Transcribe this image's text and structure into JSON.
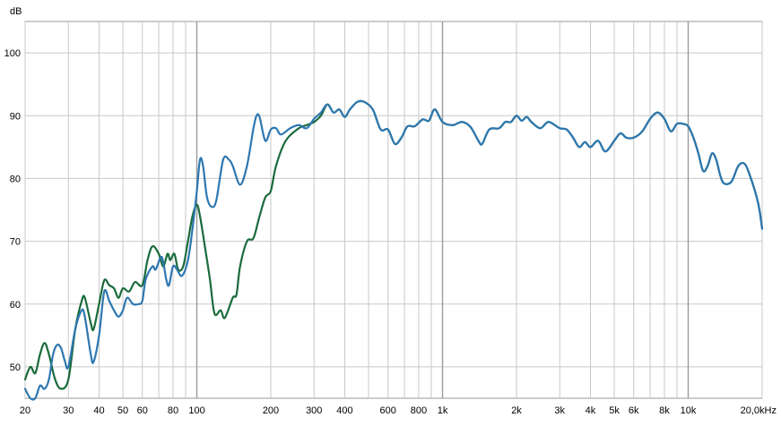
{
  "chart_data": {
    "type": "line",
    "title": "",
    "xlabel": "",
    "ylabel": "dB",
    "xscale": "log",
    "xlim": [
      20,
      20000
    ],
    "ylim": [
      45,
      105
    ],
    "grid": true,
    "legend": "none",
    "x_ticks": [
      {
        "v": 20,
        "label": "20"
      },
      {
        "v": 30,
        "label": "30"
      },
      {
        "v": 40,
        "label": "40"
      },
      {
        "v": 50,
        "label": "50"
      },
      {
        "v": 60,
        "label": "60"
      },
      {
        "v": 80,
        "label": "80"
      },
      {
        "v": 100,
        "label": "100"
      },
      {
        "v": 200,
        "label": "200"
      },
      {
        "v": 300,
        "label": "300"
      },
      {
        "v": 400,
        "label": "400"
      },
      {
        "v": 600,
        "label": "600"
      },
      {
        "v": 800,
        "label": "800"
      },
      {
        "v": 1000,
        "label": "1k"
      },
      {
        "v": 2000,
        "label": "2k"
      },
      {
        "v": 3000,
        "label": "3k"
      },
      {
        "v": 4000,
        "label": "4k"
      },
      {
        "v": 5000,
        "label": "5k"
      },
      {
        "v": 6000,
        "label": "6k"
      },
      {
        "v": 8000,
        "label": "8k"
      },
      {
        "v": 10000,
        "label": "10k"
      },
      {
        "v": 20000,
        "label": "20,0kHz"
      }
    ],
    "y_ticks": [
      {
        "v": 50,
        "label": "50"
      },
      {
        "v": 60,
        "label": "60"
      },
      {
        "v": 70,
        "label": "70"
      },
      {
        "v": 80,
        "label": "80"
      },
      {
        "v": 90,
        "label": "90"
      },
      {
        "v": 100,
        "label": "100"
      }
    ],
    "series": [
      {
        "color": "#1a6b3c",
        "points": [
          [
            20,
            48
          ],
          [
            21,
            50
          ],
          [
            22,
            49
          ],
          [
            23,
            52
          ],
          [
            24,
            53.8
          ],
          [
            25,
            52
          ],
          [
            26.5,
            48
          ],
          [
            28,
            46.5
          ],
          [
            30,
            48
          ],
          [
            32,
            56
          ],
          [
            34,
            60.5
          ],
          [
            35,
            61
          ],
          [
            37,
            57
          ],
          [
            38,
            56
          ],
          [
            40,
            60
          ],
          [
            42,
            63.8
          ],
          [
            44,
            63
          ],
          [
            46,
            62.5
          ],
          [
            48,
            61
          ],
          [
            50,
            62.5
          ],
          [
            53,
            62
          ],
          [
            56,
            63.5
          ],
          [
            60,
            63
          ],
          [
            63,
            67
          ],
          [
            66,
            69.2
          ],
          [
            70,
            68
          ],
          [
            73,
            66
          ],
          [
            76,
            68
          ],
          [
            78,
            67
          ],
          [
            81,
            68
          ],
          [
            84,
            65.5
          ],
          [
            88,
            66
          ],
          [
            92,
            70
          ],
          [
            96,
            74
          ],
          [
            100,
            75.8
          ],
          [
            103,
            74
          ],
          [
            108,
            69
          ],
          [
            113,
            64
          ],
          [
            118,
            58.5
          ],
          [
            125,
            59
          ],
          [
            130,
            57.8
          ],
          [
            140,
            61
          ],
          [
            145,
            61.5
          ],
          [
            150,
            66
          ],
          [
            160,
            70
          ],
          [
            170,
            70.5
          ],
          [
            180,
            74
          ],
          [
            190,
            77
          ],
          [
            200,
            78
          ],
          [
            210,
            82
          ],
          [
            230,
            86
          ],
          [
            260,
            88
          ],
          [
            280,
            88.5
          ],
          [
            300,
            89
          ],
          [
            320,
            90
          ],
          [
            340,
            91.8
          ],
          [
            360,
            90.5
          ],
          [
            380,
            91
          ],
          [
            400,
            89.8
          ],
          [
            420,
            91
          ],
          [
            450,
            92.2
          ],
          [
            480,
            92.2
          ],
          [
            520,
            91
          ],
          [
            560,
            87.8
          ],
          [
            600,
            87.8
          ],
          [
            640,
            85.5
          ],
          [
            680,
            86.5
          ],
          [
            720,
            88.3
          ],
          [
            770,
            88.3
          ],
          [
            830,
            89.4
          ],
          [
            880,
            89.2
          ],
          [
            930,
            91
          ],
          [
            1000,
            89
          ],
          [
            1100,
            88.5
          ],
          [
            1200,
            89
          ],
          [
            1300,
            88.2
          ],
          [
            1400,
            86
          ],
          [
            1450,
            85.5
          ],
          [
            1550,
            87.8
          ],
          [
            1700,
            88
          ],
          [
            1800,
            89
          ],
          [
            1900,
            89
          ],
          [
            2000,
            90
          ],
          [
            2100,
            89.2
          ],
          [
            2200,
            89.8
          ],
          [
            2300,
            89
          ],
          [
            2500,
            88
          ],
          [
            2700,
            89
          ],
          [
            3000,
            88
          ],
          [
            3200,
            87.8
          ],
          [
            3400,
            86.5
          ],
          [
            3600,
            85
          ],
          [
            3800,
            85.8
          ],
          [
            4000,
            85
          ],
          [
            4300,
            86
          ],
          [
            4600,
            84.3
          ],
          [
            5000,
            86
          ],
          [
            5300,
            87.2
          ],
          [
            5600,
            86.5
          ],
          [
            6000,
            86.5
          ],
          [
            6500,
            87.5
          ],
          [
            7000,
            89.5
          ],
          [
            7500,
            90.5
          ],
          [
            8000,
            89.5
          ],
          [
            8500,
            87.5
          ],
          [
            9000,
            88.7
          ],
          [
            9500,
            88.7
          ],
          [
            10000,
            88.3
          ],
          [
            10500,
            86.5
          ],
          [
            11000,
            84
          ],
          [
            11500,
            81.2
          ],
          [
            12000,
            82
          ],
          [
            12500,
            84
          ],
          [
            13000,
            83
          ],
          [
            13500,
            80.5
          ],
          [
            14000,
            79.2
          ],
          [
            15000,
            79.5
          ],
          [
            16000,
            82
          ],
          [
            17000,
            82.3
          ],
          [
            18000,
            80
          ],
          [
            19000,
            77
          ],
          [
            19500,
            75
          ],
          [
            20000,
            72
          ]
        ]
      },
      {
        "color": "#2e77b0",
        "points": [
          [
            20,
            46.5
          ],
          [
            21,
            44
          ],
          [
            22,
            44
          ],
          [
            23,
            47
          ],
          [
            24,
            46.5
          ],
          [
            25,
            48
          ],
          [
            26,
            52
          ],
          [
            27,
            53.5
          ],
          [
            28,
            53
          ],
          [
            29,
            51
          ],
          [
            30,
            50
          ],
          [
            32,
            56
          ],
          [
            34,
            59
          ],
          [
            35,
            58
          ],
          [
            37,
            52
          ],
          [
            38,
            50.8
          ],
          [
            40,
            55
          ],
          [
            42,
            62
          ],
          [
            44,
            60.5
          ],
          [
            46,
            59
          ],
          [
            48,
            58
          ],
          [
            50,
            59
          ],
          [
            52,
            61
          ],
          [
            55,
            60
          ],
          [
            58,
            60
          ],
          [
            60,
            60.5
          ],
          [
            62,
            64
          ],
          [
            66,
            66
          ],
          [
            68,
            65.5
          ],
          [
            72,
            67.5
          ],
          [
            75,
            64
          ],
          [
            77,
            63
          ],
          [
            80,
            66
          ],
          [
            83,
            65.5
          ],
          [
            87,
            64.5
          ],
          [
            92,
            67
          ],
          [
            96,
            72
          ],
          [
            100,
            78
          ],
          [
            103,
            83
          ],
          [
            106,
            82
          ],
          [
            110,
            77
          ],
          [
            115,
            75.5
          ],
          [
            120,
            76.5
          ],
          [
            128,
            83
          ],
          [
            135,
            83
          ],
          [
            140,
            82
          ],
          [
            150,
            79
          ],
          [
            160,
            82
          ],
          [
            170,
            88
          ],
          [
            175,
            90
          ],
          [
            180,
            89.8
          ],
          [
            190,
            86
          ],
          [
            200,
            87.8
          ],
          [
            210,
            88
          ],
          [
            220,
            87
          ],
          [
            240,
            88
          ],
          [
            260,
            88.5
          ],
          [
            280,
            88
          ],
          [
            300,
            89.5
          ],
          [
            320,
            90.5
          ],
          [
            340,
            91.8
          ],
          [
            360,
            90.5
          ],
          [
            380,
            91
          ],
          [
            400,
            89.8
          ],
          [
            420,
            91
          ],
          [
            450,
            92.2
          ],
          [
            480,
            92.2
          ],
          [
            520,
            91
          ],
          [
            560,
            87.8
          ],
          [
            600,
            87.8
          ],
          [
            640,
            85.5
          ],
          [
            680,
            86.5
          ],
          [
            720,
            88.3
          ],
          [
            770,
            88.3
          ],
          [
            830,
            89.4
          ],
          [
            880,
            89.2
          ],
          [
            930,
            91
          ],
          [
            1000,
            89
          ],
          [
            1100,
            88.5
          ],
          [
            1200,
            89
          ],
          [
            1300,
            88.2
          ],
          [
            1400,
            86
          ],
          [
            1450,
            85.5
          ],
          [
            1550,
            87.8
          ],
          [
            1700,
            88
          ],
          [
            1800,
            89
          ],
          [
            1900,
            89
          ],
          [
            2000,
            90
          ],
          [
            2100,
            89.2
          ],
          [
            2200,
            89.8
          ],
          [
            2300,
            89
          ],
          [
            2500,
            88
          ],
          [
            2700,
            89
          ],
          [
            3000,
            88
          ],
          [
            3200,
            87.8
          ],
          [
            3400,
            86.5
          ],
          [
            3600,
            85
          ],
          [
            3800,
            85.8
          ],
          [
            4000,
            85
          ],
          [
            4300,
            86
          ],
          [
            4600,
            84.3
          ],
          [
            5000,
            86
          ],
          [
            5300,
            87.2
          ],
          [
            5600,
            86.5
          ],
          [
            6000,
            86.5
          ],
          [
            6500,
            87.5
          ],
          [
            7000,
            89.5
          ],
          [
            7500,
            90.5
          ],
          [
            8000,
            89.5
          ],
          [
            8500,
            87.5
          ],
          [
            9000,
            88.7
          ],
          [
            9500,
            88.7
          ],
          [
            10000,
            88.3
          ],
          [
            10500,
            86.5
          ],
          [
            11000,
            84
          ],
          [
            11500,
            81.2
          ],
          [
            12000,
            82
          ],
          [
            12500,
            84
          ],
          [
            13000,
            83
          ],
          [
            13500,
            80.5
          ],
          [
            14000,
            79.2
          ],
          [
            15000,
            79.5
          ],
          [
            16000,
            82
          ],
          [
            17000,
            82.3
          ],
          [
            18000,
            80
          ],
          [
            19000,
            77
          ],
          [
            19500,
            75
          ],
          [
            20000,
            72
          ]
        ]
      }
    ]
  }
}
